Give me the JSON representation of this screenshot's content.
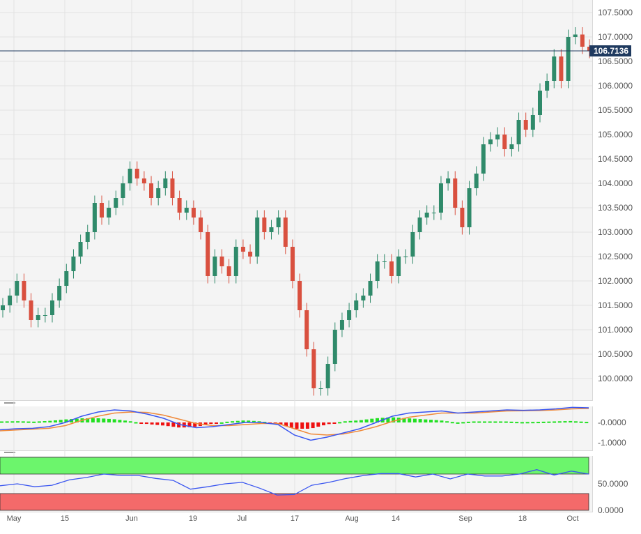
{
  "price_axis": [
    "107.5000",
    "107.0000",
    "106.5000",
    "106.0000",
    "105.5000",
    "105.0000",
    "104.5000",
    "104.0000",
    "103.5000",
    "103.0000",
    "102.5000",
    "102.0000",
    "101.5000",
    "101.0000",
    "100.5000",
    "100.0000"
  ],
  "last_price": "106.7136",
  "macd_axis": [
    "-0.0000",
    "-1.0000"
  ],
  "rsi_axis": [
    "50.0000",
    "0.0000"
  ],
  "x_axis": [
    "May",
    "15",
    "Jun",
    "19",
    "Jul",
    "17",
    "Aug",
    "14",
    "Sep",
    "18",
    "Oct"
  ],
  "colors": {
    "up": "#2f8a6a",
    "down": "#d9503f",
    "macd": "#3a56f0",
    "signal": "#f08a3a",
    "hist_pos": "#22e022",
    "hist_neg": "#ee1111",
    "overbought": "#6cf56c",
    "oversold": "#f46a6a",
    "rsi": "#3a56f0"
  },
  "chart_data": [
    {
      "type": "candlestick",
      "ylim": [
        99.6,
        107.75
      ],
      "closes": [
        101.5,
        101.7,
        102.0,
        101.6,
        101.2,
        101.3,
        101.3,
        101.6,
        101.9,
        102.2,
        102.5,
        102.8,
        103.0,
        103.6,
        103.3,
        103.5,
        103.7,
        104.0,
        104.3,
        104.1,
        104.0,
        103.7,
        103.9,
        104.1,
        103.7,
        103.4,
        103.5,
        103.3,
        103.0,
        102.1,
        102.5,
        102.3,
        102.1,
        102.7,
        102.6,
        102.5,
        103.3,
        103.0,
        103.1,
        103.3,
        102.7,
        102.0,
        101.4,
        100.6,
        99.8,
        99.8,
        100.3,
        101.0,
        101.2,
        101.4,
        101.6,
        101.7,
        102.0,
        102.4,
        102.4,
        102.1,
        102.5,
        102.5,
        103.0,
        103.3,
        103.4,
        103.4,
        104.0,
        104.1,
        103.5,
        103.1,
        103.9,
        104.2,
        104.8,
        104.9,
        105.0,
        104.7,
        104.8,
        105.3,
        105.1,
        105.4,
        105.9,
        106.1,
        106.6,
        106.1,
        107.0,
        107.05,
        106.8,
        106.7136
      ]
    },
    {
      "type": "line",
      "name": "MACD",
      "ylim": [
        -1.1,
        1.0
      ],
      "macd": [
        -0.35,
        -0.3,
        -0.28,
        -0.2,
        0.0,
        0.3,
        0.5,
        0.6,
        0.55,
        0.4,
        0.2,
        -0.1,
        -0.25,
        -0.2,
        -0.1,
        0.0,
        0.0,
        -0.1,
        -0.6,
        -0.85,
        -0.7,
        -0.5,
        -0.3,
        0.0,
        0.3,
        0.45,
        0.5,
        0.55,
        0.45,
        0.5,
        0.55,
        0.6,
        0.58,
        0.6,
        0.65,
        0.72,
        0.7
      ],
      "signal": [
        -0.4,
        -0.36,
        -0.32,
        -0.28,
        -0.15,
        0.1,
        0.3,
        0.45,
        0.5,
        0.48,
        0.35,
        0.15,
        -0.05,
        -0.15,
        -0.15,
        -0.1,
        -0.05,
        -0.05,
        -0.3,
        -0.55,
        -0.6,
        -0.55,
        -0.4,
        -0.2,
        0.05,
        0.25,
        0.35,
        0.45,
        0.45,
        0.45,
        0.5,
        0.55,
        0.56,
        0.57,
        0.6,
        0.65,
        0.67
      ]
    },
    {
      "type": "line",
      "name": "RSI",
      "ylim": [
        0,
        100
      ],
      "overbought": 70,
      "oversold": 30,
      "values": [
        46,
        50,
        44,
        47,
        58,
        63,
        70,
        67,
        67,
        61,
        57,
        39,
        44,
        50,
        53,
        41,
        27,
        28,
        47,
        53,
        61,
        67,
        71,
        71,
        64,
        70,
        60,
        70,
        66,
        66,
        70,
        79,
        68,
        76,
        70
      ]
    }
  ]
}
